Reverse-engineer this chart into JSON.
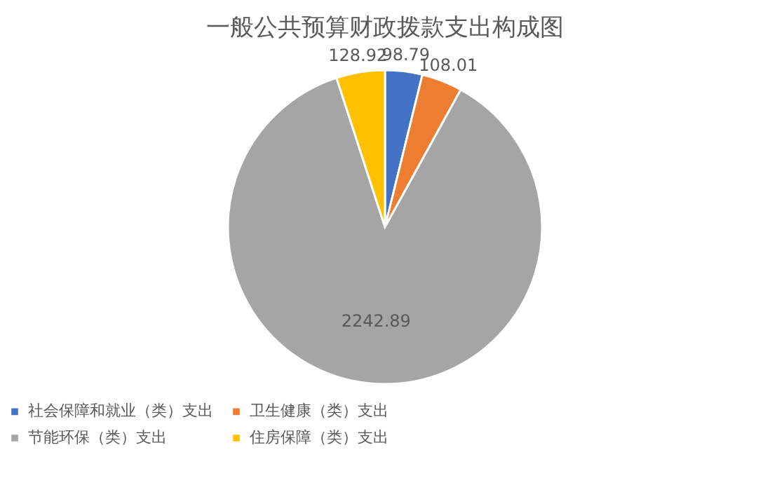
{
  "chart_data": {
    "type": "pie",
    "title": "一般公共预算财政拨款支出构成图",
    "categories": [
      "社会保障和就业（类）支出",
      "卫生健康（类）支出",
      "节能环保（类）支出",
      "住房保障（类）支出"
    ],
    "values": [
      98.79,
      108.01,
      2242.89,
      128.92
    ],
    "colors": [
      "#4472c4",
      "#ed7d31",
      "#a5a5a5",
      "#ffc000"
    ],
    "data_labels": true,
    "legend": "bottom"
  }
}
